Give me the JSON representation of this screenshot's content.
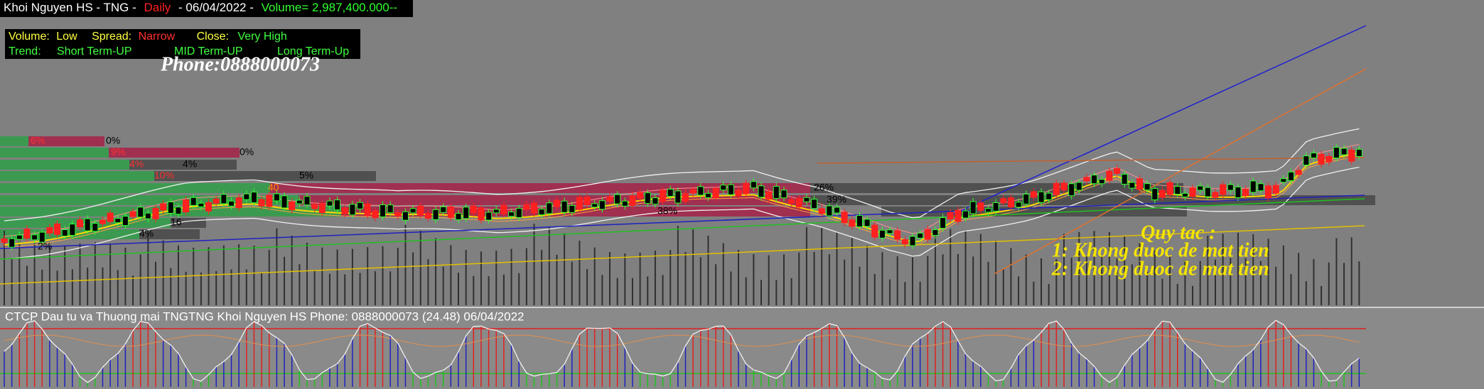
{
  "header": {
    "name": "Khoi Nguyen HS - TNG -",
    "period": "Daily",
    "date": "- 06/04/2022 -",
    "volume": "Volume= 2,987,400.000--"
  },
  "status": {
    "volume_label": "Volume:",
    "volume_value": "Low",
    "spread_label": "Spread:",
    "spread_value": "Narrow",
    "close_label": "Close:",
    "close_value": "Very High",
    "trend_label": "Trend:",
    "short_term": "Short Term-UP",
    "mid_term": "MID Term-UP",
    "long_term": "Long Term-Up"
  },
  "watermark": "Phone:0888000073",
  "zone_labels": [
    "6%",
    "0%",
    "9%",
    "0%",
    "4%",
    "4%",
    "10%",
    "5%",
    "40",
    "26%",
    "39%",
    "38%",
    "16",
    "4%",
    "2%"
  ],
  "rules": {
    "title": "Quy tac :",
    "items": [
      "1: Khong duoc de mat tien",
      "2: Khong duoc de mat tien"
    ]
  },
  "indicator_title": "CTCP Dau tu va Thuong mai TNGTNG Khoi Nguyen HS Phone: 0888000073 (24.48)  06/04/2022"
}
